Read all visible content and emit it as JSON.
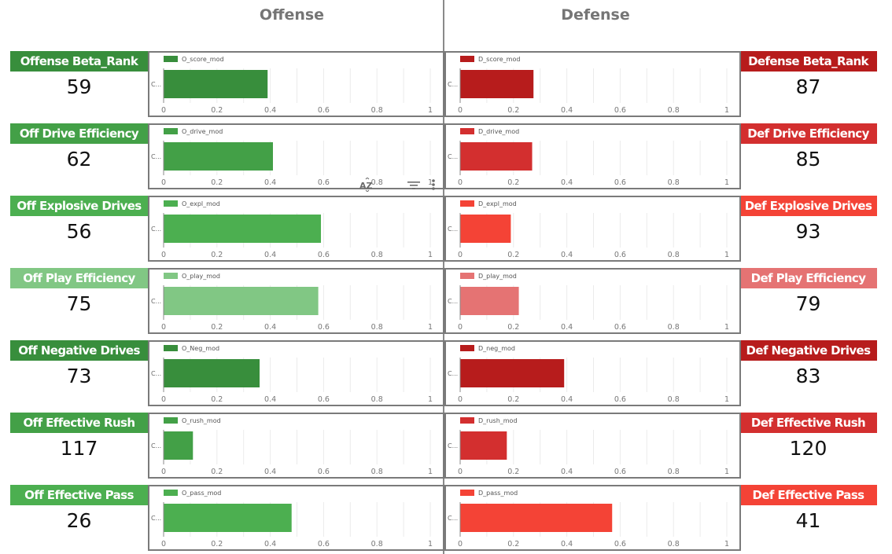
{
  "headers": {
    "offense": "Offense",
    "defense": "Defense"
  },
  "colors": {
    "green_dark": "#388e3c",
    "green": "#43a047",
    "green_mid": "#4caf50",
    "green_light": "#81c784",
    "red_dark": "#b71c1c",
    "red": "#d32f2f",
    "red_bright": "#f44336",
    "red_light": "#e57373"
  },
  "offense_cards": [
    {
      "label": "Offense Beta_Rank",
      "value": "59",
      "color": "#388e3c"
    },
    {
      "label": "Off Drive Efficiency",
      "value": "62",
      "color": "#43a047"
    },
    {
      "label": "Off Explosive Drives",
      "value": "56",
      "color": "#4caf50"
    },
    {
      "label": "Off Play Efficiency",
      "value": "75",
      "color": "#81c784"
    },
    {
      "label": "Off Negative Drives",
      "value": "73",
      "color": "#388e3c"
    },
    {
      "label": "Off Effective Rush",
      "value": "117",
      "color": "#43a047"
    },
    {
      "label": "Off Effective Pass",
      "value": "26",
      "color": "#4caf50"
    }
  ],
  "defense_cards": [
    {
      "label": "Defense Beta_Rank",
      "value": "87",
      "color": "#b71c1c"
    },
    {
      "label": "Def Drive Efficiency",
      "value": "85",
      "color": "#d32f2f"
    },
    {
      "label": "Def Explosive Drives",
      "value": "93",
      "color": "#f44336"
    },
    {
      "label": "Def Play Efficiency",
      "value": "79",
      "color": "#e57373"
    },
    {
      "label": "Def Negative Drives",
      "value": "83",
      "color": "#b71c1c"
    },
    {
      "label": "Def Effective Rush",
      "value": "120",
      "color": "#d32f2f"
    },
    {
      "label": "Def Effective Pass",
      "value": "41",
      "color": "#f44336"
    }
  ],
  "toolbar": {
    "sort_icon": "AZ",
    "filter_icon": "filter-lines",
    "more_icon": "vertical-ellipsis"
  },
  "chart_data": [
    {
      "type": "bar",
      "orientation": "horizontal",
      "side": "offense",
      "series_name": "O_score_mod",
      "categories": [
        "C..."
      ],
      "values": [
        0.39
      ],
      "color": "#388e3c",
      "xlim": [
        0,
        1
      ],
      "xticks": [
        "0",
        "0.2",
        "0.4",
        "0.6",
        "0.8",
        "1"
      ],
      "grid": true,
      "legend": "top-left"
    },
    {
      "type": "bar",
      "orientation": "horizontal",
      "side": "offense",
      "series_name": "O_drive_mod",
      "categories": [
        "C..."
      ],
      "values": [
        0.41
      ],
      "color": "#43a047",
      "xlim": [
        0,
        1
      ],
      "xticks": [
        "0",
        "0.2",
        "0.4",
        "0.6",
        "0.8",
        "1"
      ],
      "grid": true,
      "legend": "top-left"
    },
    {
      "type": "bar",
      "orientation": "horizontal",
      "side": "offense",
      "series_name": "O_expl_mod",
      "categories": [
        "C..."
      ],
      "values": [
        0.59
      ],
      "color": "#4caf50",
      "xlim": [
        0,
        1
      ],
      "xticks": [
        "0",
        "0.2",
        "0.4",
        "0.6",
        "0.8",
        "1"
      ],
      "grid": true,
      "legend": "top-left"
    },
    {
      "type": "bar",
      "orientation": "horizontal",
      "side": "offense",
      "series_name": "O_play_mod",
      "categories": [
        "C..."
      ],
      "values": [
        0.58
      ],
      "color": "#81c784",
      "xlim": [
        0,
        1
      ],
      "xticks": [
        "0",
        "0.2",
        "0.4",
        "0.6",
        "0.8",
        "1"
      ],
      "grid": true,
      "legend": "top-left"
    },
    {
      "type": "bar",
      "orientation": "horizontal",
      "side": "offense",
      "series_name": "O_Neg_mod",
      "categories": [
        "C..."
      ],
      "values": [
        0.36
      ],
      "color": "#388e3c",
      "xlim": [
        0,
        1
      ],
      "xticks": [
        "0",
        "0.2",
        "0.4",
        "0.6",
        "0.8",
        "1"
      ],
      "grid": true,
      "legend": "top-left"
    },
    {
      "type": "bar",
      "orientation": "horizontal",
      "side": "offense",
      "series_name": "O_rush_mod",
      "categories": [
        "C..."
      ],
      "values": [
        0.11
      ],
      "color": "#43a047",
      "xlim": [
        0,
        1
      ],
      "xticks": [
        "0",
        "0.2",
        "0.4",
        "0.6",
        "0.8",
        "1"
      ],
      "grid": true,
      "legend": "top-left"
    },
    {
      "type": "bar",
      "orientation": "horizontal",
      "side": "offense",
      "series_name": "O_pass_mod",
      "categories": [
        "C..."
      ],
      "values": [
        0.48
      ],
      "color": "#4caf50",
      "xlim": [
        0,
        1
      ],
      "xticks": [
        "0",
        "0.2",
        "0.4",
        "0.6",
        "0.8",
        "1"
      ],
      "grid": true,
      "legend": "top-left"
    },
    {
      "type": "bar",
      "orientation": "horizontal",
      "side": "defense",
      "series_name": "D_score_mod",
      "categories": [
        "C..."
      ],
      "values": [
        0.275
      ],
      "color": "#b71c1c",
      "xlim": [
        0,
        1
      ],
      "xticks": [
        "0",
        "0.2",
        "0.4",
        "0.6",
        "0.8",
        "1"
      ],
      "grid": true,
      "legend": "top-left"
    },
    {
      "type": "bar",
      "orientation": "horizontal",
      "side": "defense",
      "series_name": "D_drive_mod",
      "categories": [
        "C..."
      ],
      "values": [
        0.27
      ],
      "color": "#d32f2f",
      "xlim": [
        0,
        1
      ],
      "xticks": [
        "0",
        "0.2",
        "0.4",
        "0.6",
        "0.8",
        "1"
      ],
      "grid": true,
      "legend": "top-left"
    },
    {
      "type": "bar",
      "orientation": "horizontal",
      "side": "defense",
      "series_name": "D_expl_mod",
      "categories": [
        "C..."
      ],
      "values": [
        0.19
      ],
      "color": "#f44336",
      "xlim": [
        0,
        1
      ],
      "xticks": [
        "0",
        "0.2",
        "0.4",
        "0.6",
        "0.8",
        "1"
      ],
      "grid": true,
      "legend": "top-left"
    },
    {
      "type": "bar",
      "orientation": "horizontal",
      "side": "defense",
      "series_name": "D_play_mod",
      "categories": [
        "C..."
      ],
      "values": [
        0.22
      ],
      "color": "#e57373",
      "xlim": [
        0,
        1
      ],
      "xticks": [
        "0",
        "0.2",
        "0.4",
        "0.6",
        "0.8",
        "1"
      ],
      "grid": true,
      "legend": "top-left"
    },
    {
      "type": "bar",
      "orientation": "horizontal",
      "side": "defense",
      "series_name": "D_neg_mod",
      "categories": [
        "C..."
      ],
      "values": [
        0.39
      ],
      "color": "#b71c1c",
      "xlim": [
        0,
        1
      ],
      "xticks": [
        "0",
        "0.2",
        "0.4",
        "0.6",
        "0.8",
        "1"
      ],
      "grid": true,
      "legend": "top-left"
    },
    {
      "type": "bar",
      "orientation": "horizontal",
      "side": "defense",
      "series_name": "D_rush_mod",
      "categories": [
        "C..."
      ],
      "values": [
        0.175
      ],
      "color": "#d32f2f",
      "xlim": [
        0,
        1
      ],
      "xticks": [
        "0",
        "0.2",
        "0.4",
        "0.6",
        "0.8",
        "1"
      ],
      "grid": true,
      "legend": "top-left"
    },
    {
      "type": "bar",
      "orientation": "horizontal",
      "side": "defense",
      "series_name": "D_pass_mod",
      "categories": [
        "C..."
      ],
      "values": [
        0.57
      ],
      "color": "#f44336",
      "xlim": [
        0,
        1
      ],
      "xticks": [
        "0",
        "0.2",
        "0.4",
        "0.6",
        "0.8",
        "1"
      ],
      "grid": true,
      "legend": "top-left"
    }
  ]
}
